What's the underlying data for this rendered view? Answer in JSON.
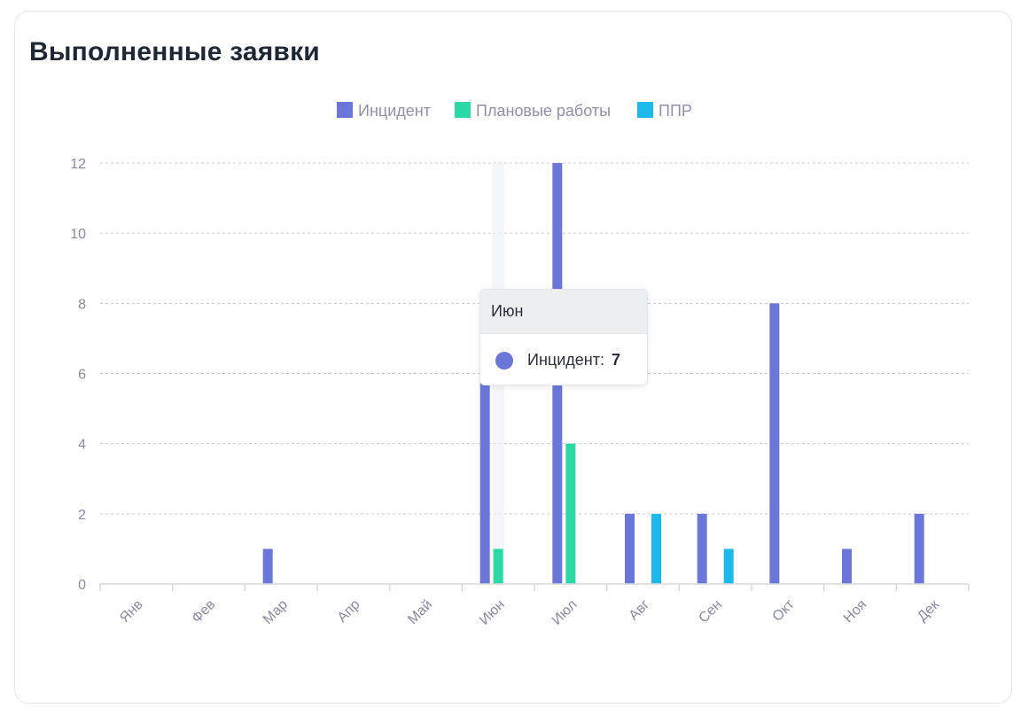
{
  "card": {
    "title": "Выполненные заявки"
  },
  "tooltip": {
    "month": "Июн",
    "series": "Инцидент:",
    "value": "7",
    "color": "#6b77d8"
  },
  "chart_data": {
    "type": "bar",
    "title": "Выполненные заявки",
    "xlabel": "",
    "ylabel": "",
    "ylim": [
      0,
      12
    ],
    "yticks": [
      0,
      2,
      4,
      6,
      8,
      10,
      12
    ],
    "grid": true,
    "legend_position": "top-center",
    "categories": [
      "Янв",
      "Фев",
      "Мар",
      "Апр",
      "Май",
      "Июн",
      "Июл",
      "Авг",
      "Сен",
      "Окт",
      "Ноя",
      "Дек"
    ],
    "series": [
      {
        "name": "Инцидент",
        "color": "#6b77d8",
        "values": [
          0,
          0,
          1,
          0,
          0,
          7,
          12,
          2,
          2,
          8,
          1,
          2
        ]
      },
      {
        "name": "Плановые работы",
        "color": "#2bd9a6",
        "values": [
          0,
          0,
          0,
          0,
          0,
          1,
          4,
          0,
          0,
          0,
          0,
          0
        ]
      },
      {
        "name": "ППР",
        "color": "#1cb9ea",
        "values": [
          0,
          0,
          0,
          0,
          0,
          0,
          0,
          2,
          1,
          0,
          0,
          0
        ]
      }
    ]
  }
}
